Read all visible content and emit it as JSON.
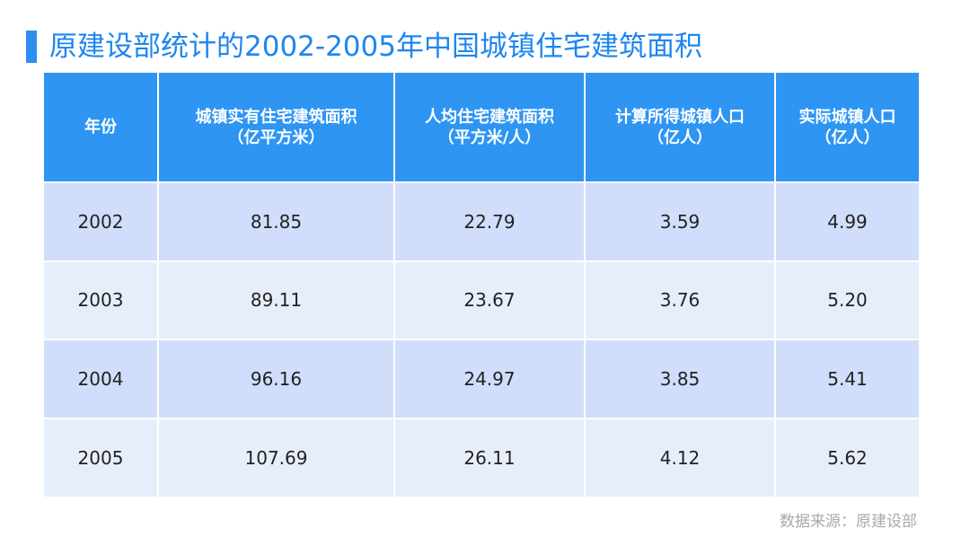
{
  "title": "原建设部统计的2002-2005年中国城镇住宅建筑面积",
  "source": "数据来源：原建设部",
  "colors": {
    "accent": "#2e8ff0",
    "header_bg": "#2e95f3",
    "row_odd": "#d0defb",
    "row_even": "#e7eefb"
  },
  "chart_data": {
    "type": "table",
    "columns": [
      [
        "年份"
      ],
      [
        "城镇实有住宅建筑面积",
        "（亿平方米）"
      ],
      [
        "人均住宅建筑面积",
        "（平方米/人）"
      ],
      [
        "计算所得城镇人口",
        "（亿人）"
      ],
      [
        "实际城镇人口",
        "（亿人）"
      ]
    ],
    "rows": [
      [
        "2002",
        "81.85",
        "22.79",
        "3.59",
        "4.99"
      ],
      [
        "2003",
        "89.11",
        "23.67",
        "3.76",
        "5.20"
      ],
      [
        "2004",
        "96.16",
        "24.97",
        "3.85",
        "5.41"
      ],
      [
        "2005",
        "107.69",
        "26.11",
        "4.12",
        "5.62"
      ]
    ]
  }
}
